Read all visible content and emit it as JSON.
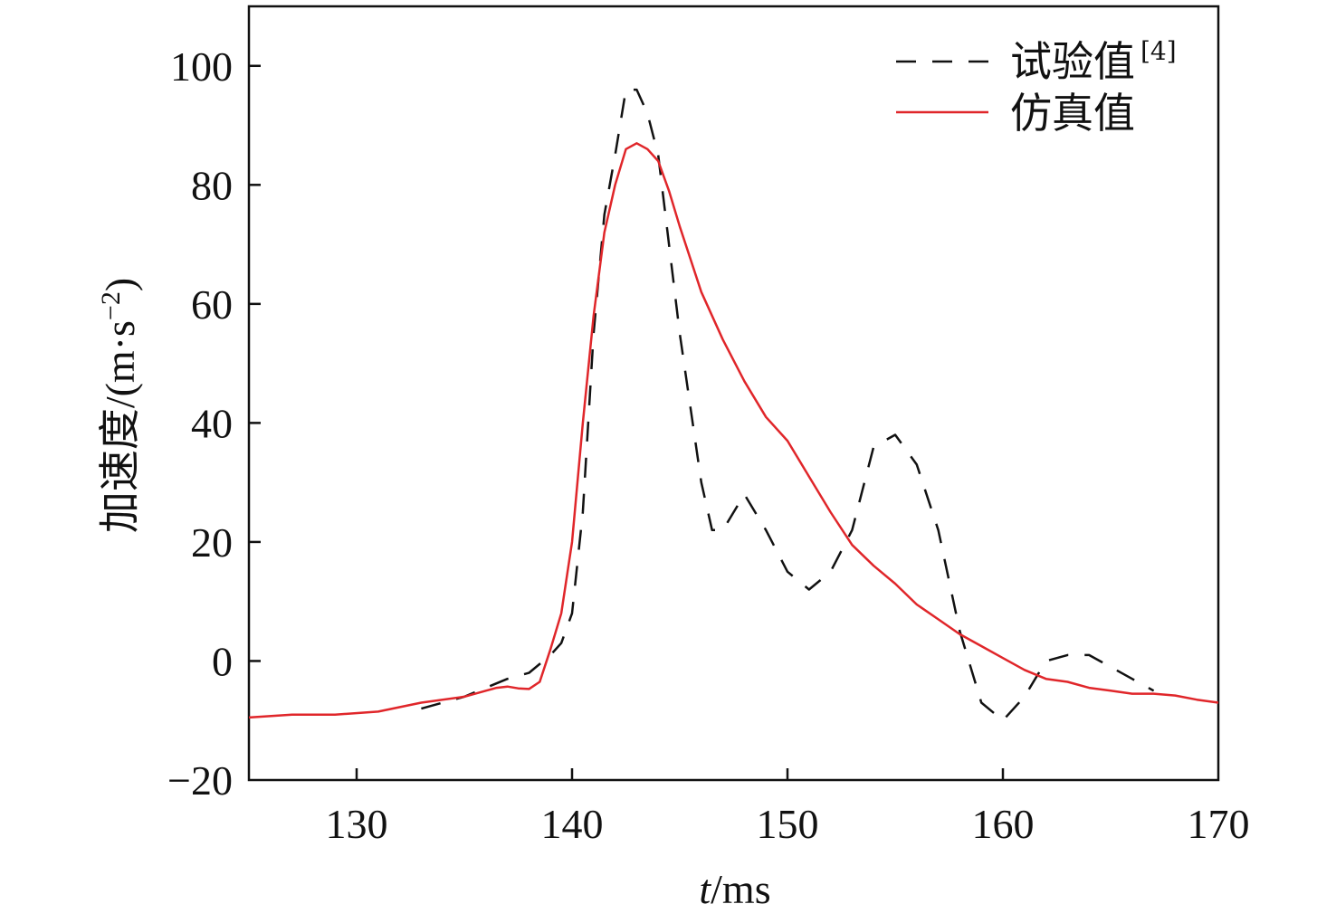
{
  "chart_data": {
    "type": "line",
    "title": "",
    "xlabel": {
      "var": "t",
      "unit": "/ms"
    },
    "ylabel": {
      "prefix": "加速度/(m·s",
      "sup": "−2",
      "suffix": ")"
    },
    "xlim": [
      125,
      170
    ],
    "ylim": [
      -20,
      110
    ],
    "xticks": [
      130,
      140,
      150,
      160,
      170
    ],
    "yticks": [
      -20,
      0,
      20,
      40,
      60,
      80,
      100
    ],
    "ytick_labels": [
      "−20",
      "0",
      "20",
      "40",
      "60",
      "80",
      "100"
    ],
    "grid": false,
    "legend": "top-right",
    "series": [
      {
        "name": "试验值",
        "name_ref": "[4]",
        "color": "#111111",
        "style": "dashed",
        "x": [
          133,
          135,
          137,
          138,
          139,
          139.5,
          140,
          140.5,
          141,
          141.5,
          142,
          142.5,
          143,
          143.5,
          144,
          145,
          146,
          146.5,
          147,
          148,
          149,
          150,
          151,
          152,
          153,
          154,
          155,
          156,
          157,
          158,
          159,
          160,
          161,
          162,
          163,
          164,
          165,
          166,
          167
        ],
        "y": [
          -8,
          -6,
          -3,
          -2,
          1,
          3,
          8,
          25,
          55,
          75,
          85,
          96,
          96,
          92,
          85,
          55,
          30,
          22,
          22,
          28,
          22,
          15,
          12,
          15,
          22,
          36,
          38,
          33,
          22,
          5,
          -7,
          -10,
          -6,
          0,
          1,
          1,
          -1,
          -3,
          -5
        ]
      },
      {
        "name": "仿真值",
        "color": "#e0262a",
        "style": "solid",
        "x": [
          125,
          127,
          129,
          131,
          133,
          135,
          136,
          136.5,
          137,
          137.5,
          138,
          138.5,
          139,
          139.5,
          140,
          140.5,
          141,
          141.5,
          142,
          142.5,
          143,
          143.5,
          144,
          144.5,
          145,
          146,
          147,
          148,
          149,
          150,
          151,
          152,
          153,
          154,
          155,
          156,
          157,
          158,
          159,
          160,
          161,
          162,
          163,
          164,
          165,
          166,
          167,
          168,
          169,
          170
        ],
        "y": [
          -9.5,
          -9,
          -9,
          -8.5,
          -7,
          -6,
          -5,
          -4.5,
          -4.3,
          -4.6,
          -4.7,
          -3.5,
          2,
          8,
          20,
          40,
          58,
          72,
          80,
          86,
          87,
          86,
          84,
          79,
          73,
          62,
          54,
          47,
          41,
          37,
          31,
          25,
          19.5,
          16,
          13,
          9.5,
          7,
          4.5,
          2.5,
          0.5,
          -1.5,
          -3,
          -3.5,
          -4.5,
          -5,
          -5.5,
          -5.5,
          -5.8,
          -6.5,
          -7
        ]
      }
    ]
  }
}
